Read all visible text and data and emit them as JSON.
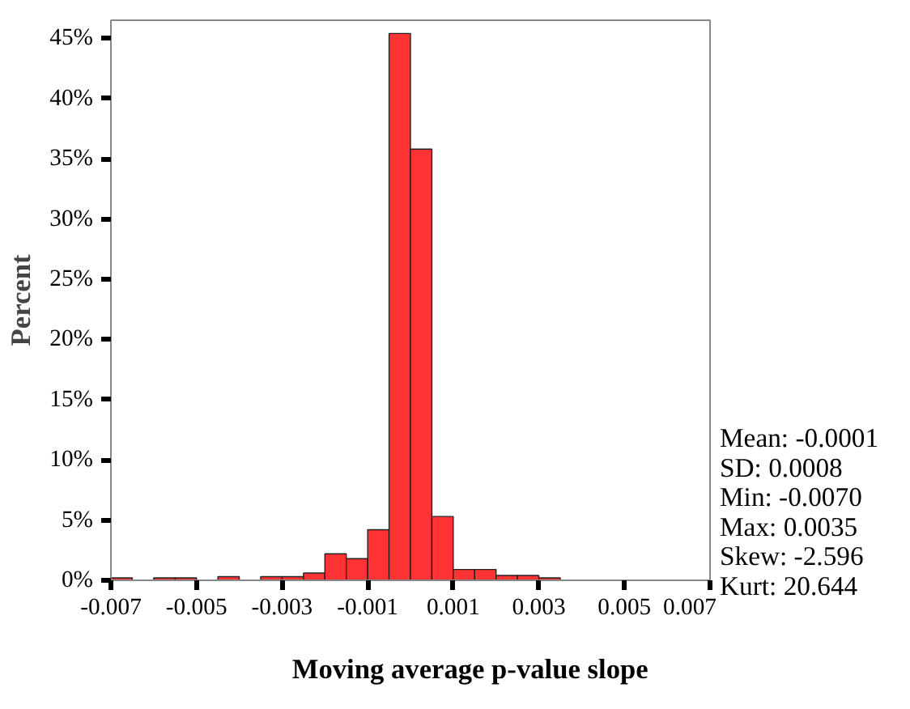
{
  "chart_data": {
    "type": "histogram",
    "xlabel": "Moving average p-value slope",
    "ylabel": "Percent",
    "bins": [
      -0.007,
      -0.0065,
      -0.006,
      -0.0055,
      -0.005,
      -0.0045,
      -0.004,
      -0.0035,
      -0.003,
      -0.0025,
      -0.002,
      -0.0015,
      -0.001,
      -0.0005,
      0,
      0.0005,
      0.001,
      0.0015,
      0.002,
      0.0025,
      0.003,
      0.0035
    ],
    "values": [
      0.2,
      0,
      0.2,
      0.2,
      0,
      0.3,
      0,
      0.3,
      0.3,
      0.6,
      2.2,
      1.8,
      4.2,
      45.4,
      35.8,
      5.3,
      0.9,
      0.9,
      0.4,
      0.4,
      0.2
    ],
    "color": "#ff3333",
    "xlim": [
      -0.007,
      0.007
    ],
    "xticks": [
      -0.007,
      -0.005,
      -0.003,
      -0.001,
      0.001,
      0.003,
      0.005,
      0.007
    ],
    "ylim": [
      0,
      46.5
    ],
    "yticks": [
      {
        "value": 0,
        "label": "0%"
      },
      {
        "value": 5,
        "label": "5%"
      },
      {
        "value": 10,
        "label": "10%"
      },
      {
        "value": 15,
        "label": "15%"
      },
      {
        "value": 20,
        "label": "20%"
      },
      {
        "value": 25,
        "label": "25%"
      },
      {
        "value": 30,
        "label": "30%"
      },
      {
        "value": 35,
        "label": "35%"
      },
      {
        "value": 40,
        "label": "40%"
      },
      {
        "value": 45,
        "label": "45%"
      }
    ],
    "grid": false,
    "annotations": [
      "Mean: -0.0001",
      "SD: 0.0008",
      "Min: -0.0070",
      "Max: 0.0035",
      "Skew: -2.596",
      "Kurt: 20.644"
    ]
  }
}
